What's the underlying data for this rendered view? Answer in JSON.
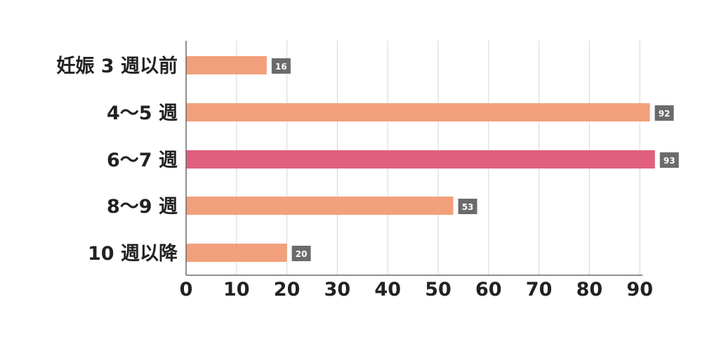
{
  "chart_data": {
    "type": "bar",
    "orientation": "horizontal",
    "categories": [
      "妊娠 3 週以前",
      "4〜5 週",
      "6〜7 週",
      "8〜9 週",
      "10 週以降"
    ],
    "values": [
      16,
      92,
      93,
      53,
      20
    ],
    "value_labels": [
      "16",
      "92",
      "93",
      "53",
      "20"
    ],
    "highlight_index": 2,
    "xlim": [
      0,
      90
    ],
    "x_ticks": [
      "0",
      "10",
      "20",
      "30",
      "40",
      "50",
      "60",
      "70",
      "80",
      "90"
    ],
    "grid": true,
    "legend": "none",
    "colors": {
      "bar": "#f2a07b",
      "bar_highlight": "#e05f7e",
      "value_badge": "#6b6b6b",
      "grid": "#d6d6d6",
      "axis": "#6b6b6b",
      "text": "#222222"
    }
  }
}
